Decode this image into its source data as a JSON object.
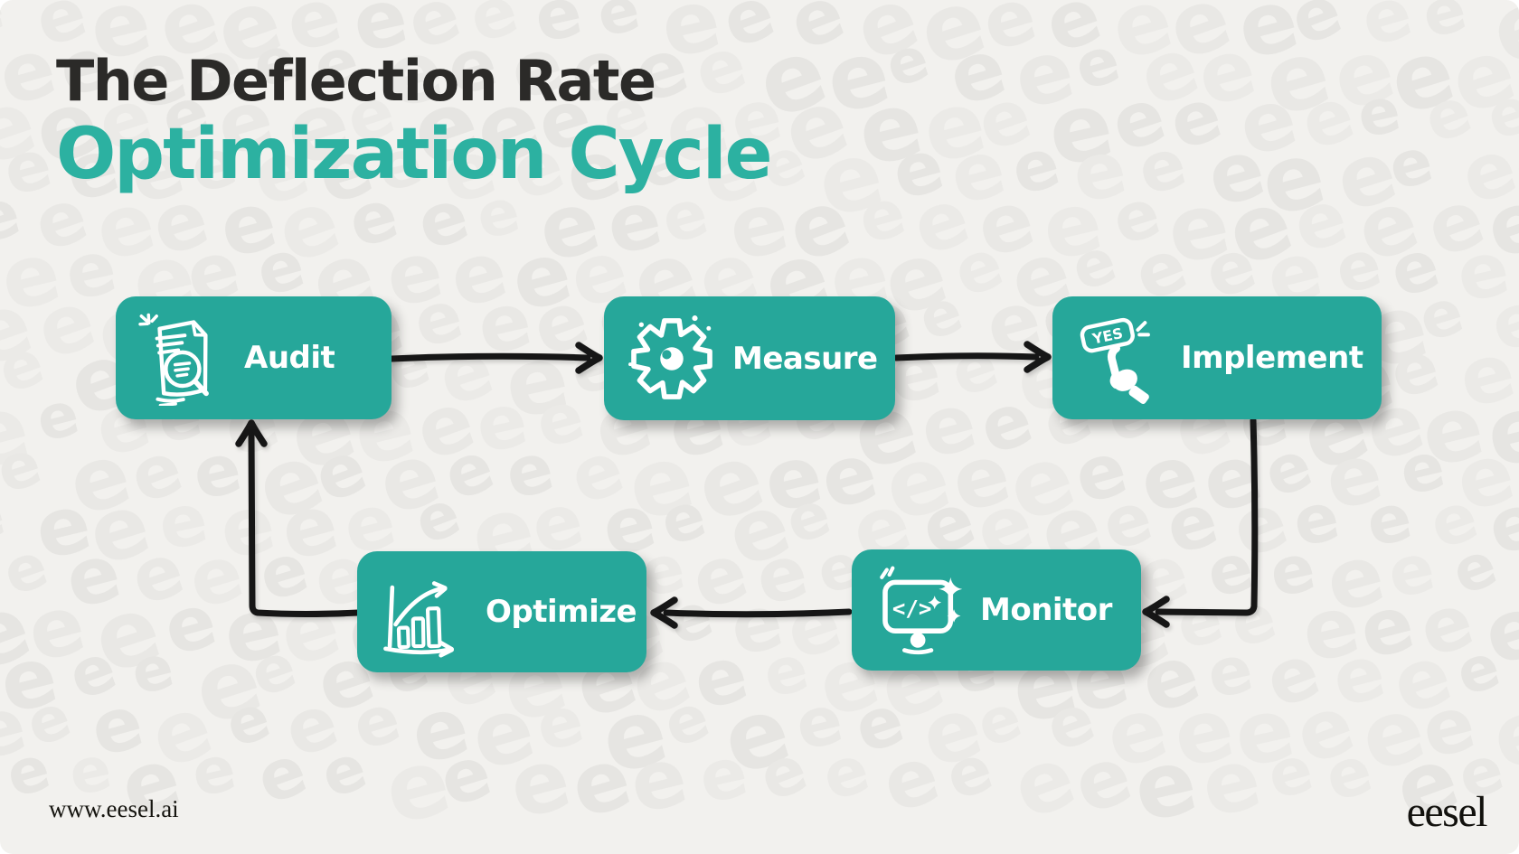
{
  "title": {
    "line1": "The Deflection Rate",
    "line2": "Optimization Cycle"
  },
  "steps": [
    {
      "id": "audit",
      "label": "Audit",
      "icon": "document-magnifier-icon"
    },
    {
      "id": "measure",
      "label": "Measure",
      "icon": "gear-icon"
    },
    {
      "id": "implement",
      "label": "Implement",
      "icon": "yes-button-click-icon",
      "icon_text": "YES"
    },
    {
      "id": "monitor",
      "label": "Monitor",
      "icon": "code-monitor-icon",
      "icon_text": "</>"
    },
    {
      "id": "optimize",
      "label": "Optimize",
      "icon": "growth-chart-icon"
    }
  ],
  "flow_order": [
    "Audit",
    "Measure",
    "Implement",
    "Monitor",
    "Optimize",
    "Audit"
  ],
  "footer": {
    "website": "www.eesel.ai",
    "brand": "eesel"
  },
  "watermark": {
    "glyph": "e",
    "shades": [
      "#e6e5e2",
      "#e9e8e5",
      "#ebeae7"
    ]
  },
  "colors": {
    "background": "#f2f1ee",
    "box_teal": "#26a79a",
    "title_teal": "#2cb1a1",
    "title_dark": "#2b2a28",
    "arrow_black": "#161616",
    "icon_white": "#ffffff"
  }
}
